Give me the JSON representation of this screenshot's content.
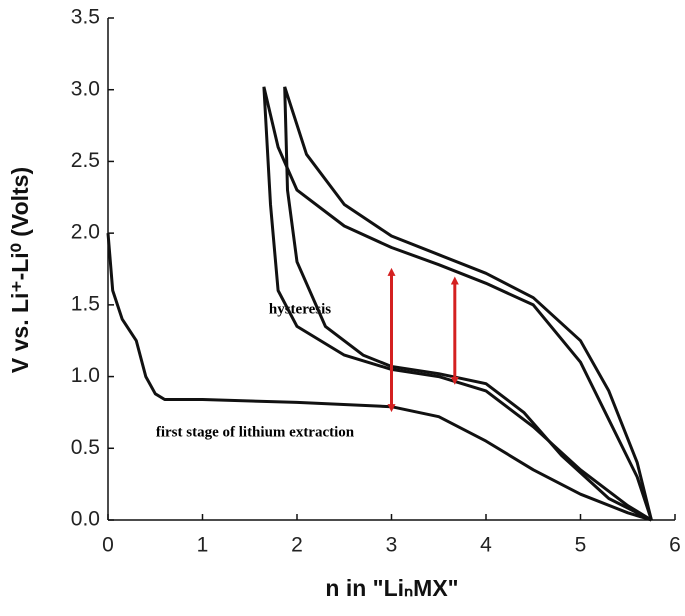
{
  "chart_data": {
    "type": "line",
    "x_label": "n in \"LiₙMX\"",
    "y_label": "V vs. Li⁺-Li⁰ (Volts)",
    "annotations": [
      "hysteresis",
      "first stage of lithium extraction"
    ],
    "xlim": [
      0,
      6
    ],
    "ylim": [
      0,
      3.5
    ],
    "xticks": [
      0,
      1,
      2,
      3,
      4,
      5,
      6
    ],
    "yticks": [
      {
        "value": 0,
        "label": "0.0"
      },
      {
        "value": 0.5,
        "label": "0.5"
      },
      {
        "value": 1,
        "label": "1.0"
      },
      {
        "value": 1.5,
        "label": "1.5"
      },
      {
        "value": 2,
        "label": "2.0"
      },
      {
        "value": 2.5,
        "label": "2.5"
      },
      {
        "value": 3,
        "label": "3.0"
      },
      {
        "value": 3.5,
        "label": "3.5"
      }
    ],
    "series": [
      {
        "color": "#111111",
        "x": [
          0,
          0.05,
          0.15,
          0.3,
          0.4,
          0.5,
          0.6,
          1,
          2,
          3,
          3.5,
          4,
          4.5,
          5,
          5.5,
          5.75
        ],
        "values": [
          2.0,
          1.6,
          1.4,
          1.25,
          1.0,
          0.88,
          0.84,
          0.84,
          0.82,
          0.79,
          0.72,
          0.55,
          0.35,
          0.18,
          0.05,
          0
        ]
      },
      {
        "color": "#111111",
        "x": [
          5.75,
          5.6,
          5.3,
          5,
          4.5,
          4,
          3.5,
          3,
          2.5,
          2,
          1.8,
          1.65
        ],
        "values": [
          0,
          0.3,
          0.7,
          1.1,
          1.5,
          1.65,
          1.78,
          1.9,
          2.05,
          2.3,
          2.6,
          3.02
        ]
      },
      {
        "color": "#111111",
        "x": [
          1.65,
          1.72,
          1.8,
          2,
          2.5,
          3,
          3.5,
          4,
          4.5,
          5,
          5.5,
          5.75
        ],
        "values": [
          3.02,
          2.2,
          1.6,
          1.35,
          1.15,
          1.05,
          1.0,
          0.9,
          0.65,
          0.35,
          0.1,
          0
        ]
      },
      {
        "color": "#111111",
        "x": [
          5.75,
          5.6,
          5.3,
          5,
          4.5,
          4,
          3.5,
          3,
          2.5,
          2.1,
          1.87
        ],
        "values": [
          0,
          0.4,
          0.9,
          1.25,
          1.55,
          1.72,
          1.85,
          1.98,
          2.2,
          2.55,
          3.02
        ]
      },
      {
        "color": "#111111",
        "x": [
          1.87,
          1.9,
          2,
          2.3,
          2.7,
          3,
          3.5,
          4,
          4.4,
          4.8,
          5.3,
          5.75
        ],
        "values": [
          3.02,
          2.3,
          1.8,
          1.35,
          1.15,
          1.07,
          1.02,
          0.95,
          0.75,
          0.45,
          0.15,
          0
        ]
      }
    ],
    "arrows": {
      "color": "#d42020",
      "x": [
        3,
        3.67
      ],
      "from": [
        0.78,
        0.97
      ],
      "to": [
        1.73,
        1.67
      ]
    }
  }
}
